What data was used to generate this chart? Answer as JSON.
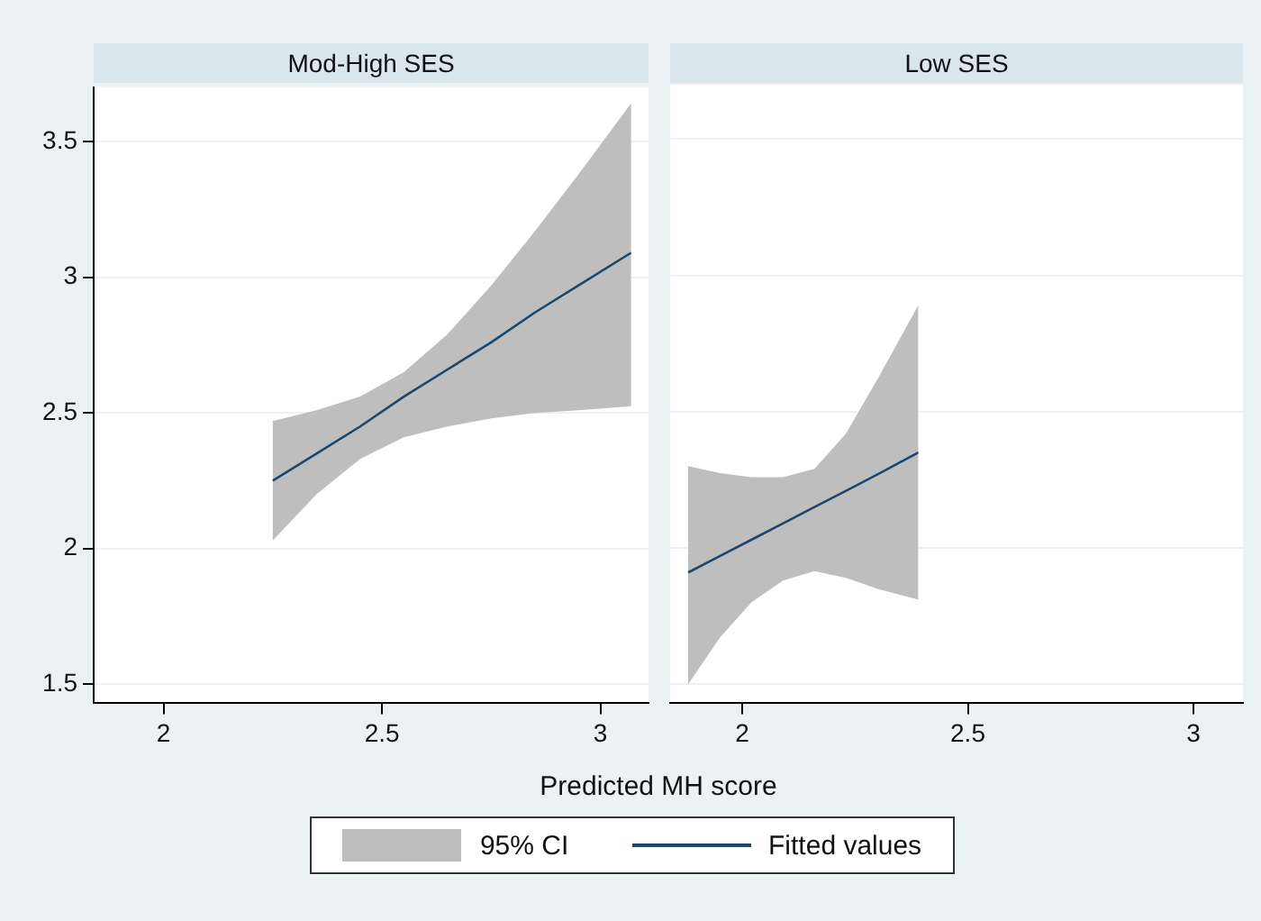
{
  "chart_data": [
    {
      "type": "line",
      "title": "Mod-High SES",
      "xlabel": "Predicted MH score",
      "xlim": [
        1.84,
        3.11
      ],
      "xticks": [
        2,
        2.5,
        3
      ],
      "ylim": [
        1.43,
        3.7
      ],
      "yticks": [
        1.5,
        2,
        2.5,
        3,
        3.5
      ],
      "grid": "y",
      "legend": "bottom",
      "marker": "none",
      "series": [
        {
          "name": "95% CI",
          "type": "area",
          "color": "#bebebe"
        },
        {
          "name": "Fitted values",
          "type": "line",
          "color": "#1a476f",
          "x": [
            2.25,
            2.35,
            2.45,
            2.55,
            2.65,
            2.75,
            2.85,
            2.95,
            3.07
          ],
          "values": [
            2.25,
            2.35,
            2.45,
            2.56,
            2.66,
            2.76,
            2.87,
            2.97,
            3.09
          ],
          "lower": [
            2.03,
            2.2,
            2.33,
            2.41,
            2.45,
            2.48,
            2.5,
            2.51,
            2.525
          ],
          "upper": [
            2.47,
            2.51,
            2.56,
            2.65,
            2.79,
            2.97,
            3.17,
            3.38,
            3.64
          ]
        }
      ]
    },
    {
      "type": "line",
      "title": "Low SES",
      "xlim": [
        1.84,
        3.11
      ],
      "xticks": [
        2,
        2.5,
        3
      ],
      "ylim": [
        1.43,
        3.7
      ],
      "yticks": [
        1.5,
        2,
        2.5,
        3,
        3.5
      ],
      "grid": "y",
      "tick_labels": "x",
      "marker": "none",
      "series": [
        {
          "type": "area",
          "color": "#bebebe"
        },
        {
          "type": "line",
          "color": "#1a476f",
          "x": [
            1.88,
            1.95,
            2.02,
            2.09,
            2.16,
            2.23,
            2.3,
            2.39
          ],
          "values": [
            1.91,
            1.97,
            2.03,
            2.09,
            2.15,
            2.21,
            2.27,
            2.35
          ],
          "lower": [
            1.5,
            1.67,
            1.8,
            1.88,
            1.915,
            1.89,
            1.85,
            1.81
          ],
          "upper": [
            2.3,
            2.275,
            2.26,
            2.26,
            2.29,
            2.42,
            2.62,
            2.89
          ]
        }
      ]
    }
  ]
}
